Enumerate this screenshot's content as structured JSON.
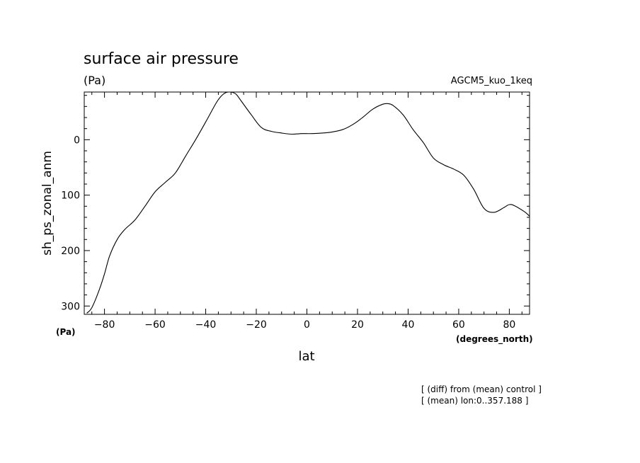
{
  "chart_data": {
    "type": "line",
    "title": "surface air pressure",
    "units": "(Pa)",
    "dataset": "AGCM5_kuo_1keq",
    "xlabel": "lat",
    "ylabel": "sh_ps_zonal_anm",
    "x_unit": "(degrees_north)",
    "y_unit": "(Pa)",
    "xlim": [
      -88,
      88
    ],
    "ylim": [
      315,
      -86
    ],
    "y_inverted": true,
    "xticks": [
      -80,
      -60,
      -40,
      -20,
      0,
      20,
      40,
      60,
      80
    ],
    "yticks": [
      0,
      100,
      200,
      300
    ],
    "grid": false,
    "annotations": [
      "[ (diff) from (mean) control ]",
      "[ (mean) lon:0..357.188 ]"
    ],
    "series": [
      {
        "x": [
          -87,
          -85,
          -82,
          -80,
          -78,
          -75,
          -72,
          -68,
          -64,
          -60,
          -56,
          -52,
          -48,
          -44,
          -40,
          -36,
          -34,
          -32,
          -30,
          -28,
          -26,
          -22,
          -18,
          -14,
          -10,
          -6,
          -2,
          2,
          6,
          10,
          14,
          18,
          22,
          26,
          30,
          32,
          34,
          38,
          42,
          46,
          50,
          54,
          58,
          62,
          66,
          70,
          74,
          78,
          80,
          82,
          86,
          88
        ],
        "y": [
          313,
          303,
          270,
          242,
          210,
          180,
          162,
          145,
          120,
          94,
          77,
          60,
          30,
          0,
          -32,
          -65,
          -78,
          -85,
          -86,
          -82,
          -70,
          -45,
          -22,
          -15,
          -12,
          -10,
          -11,
          -11,
          -12,
          -14,
          -18,
          -27,
          -40,
          -55,
          -64,
          -65,
          -62,
          -45,
          -18,
          5,
          33,
          45,
          53,
          64,
          90,
          124,
          131,
          122,
          117,
          119,
          130,
          138
        ]
      }
    ]
  }
}
